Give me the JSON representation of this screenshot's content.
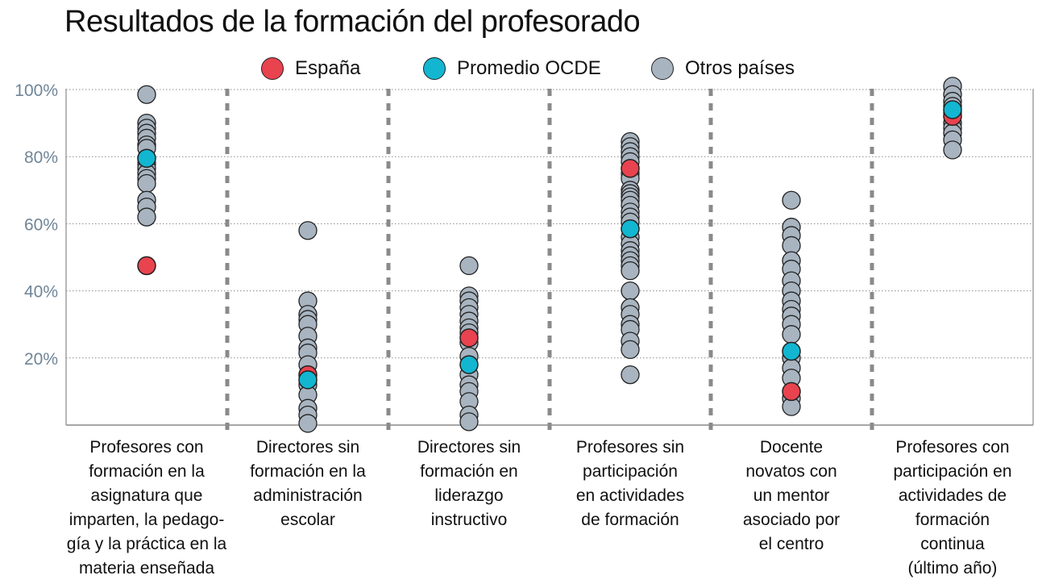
{
  "chart_data": {
    "type": "scatter",
    "title": "Resultados de la formación del profesorado",
    "ylim": [
      0,
      100
    ],
    "y_ticks": [
      "20%",
      "40%",
      "60%",
      "80%",
      "100%"
    ],
    "grid": "horizontal dotted",
    "legend_position": "top",
    "legend": [
      {
        "name": "España",
        "color": "#e8434f"
      },
      {
        "name": "Promedio OCDE",
        "color": "#12b6d1"
      },
      {
        "name": "Otros países",
        "color": "#a8b4c0"
      }
    ],
    "categories": [
      {
        "label": "Profesores con formación en la asignatura que imparten, la pedago-gía y la práctica en la materia enseñada",
        "lines": [
          "Profesores con",
          "formación en la",
          "asignatura que",
          "imparten, la pedago-",
          "gía y la práctica en la",
          "materia enseñada"
        ],
        "espana": 47.5,
        "ocde": 79.5,
        "otros": [
          98.5,
          90,
          88.5,
          87,
          85.5,
          83.5,
          82.5,
          79.5,
          78,
          76.5,
          75,
          73.5,
          72,
          67,
          65,
          62
        ]
      },
      {
        "label": "Directores sin formación en la administración escolar",
        "lines": [
          "Directores sin",
          "formación en la",
          "administración",
          "escolar"
        ],
        "espana": 15,
        "ocde": 13.5,
        "otros": [
          58,
          37,
          33,
          31.5,
          30,
          26.5,
          23,
          21.5,
          18,
          12,
          9,
          5,
          3,
          0.5
        ]
      },
      {
        "label": "Directores sin formación en liderazgo instructivo",
        "lines": [
          "Directores sin",
          "formación en",
          "liderazgo",
          "instructivo"
        ],
        "espana": 26,
        "ocde": 18,
        "otros": [
          47.5,
          38.5,
          37,
          35,
          33,
          31,
          29,
          27.5,
          24.5,
          20.5,
          15,
          12,
          10,
          7,
          3,
          1
        ]
      },
      {
        "label": "Profesores sin participación en actividades de formación",
        "lines": [
          "Profesores sin",
          "participación",
          "en actividades",
          "de formación"
        ],
        "espana": 76.5,
        "ocde": 58.5,
        "otros": [
          84.5,
          83,
          81.5,
          80,
          78.5,
          75,
          73.5,
          70,
          69,
          68,
          67,
          65.5,
          63.5,
          62,
          60.5,
          56,
          54,
          52,
          50.5,
          49,
          47.5,
          46,
          40,
          35,
          33,
          30,
          28.5,
          25,
          22.5,
          15
        ]
      },
      {
        "label": "Docente novatos con un mentor asociado por el centro",
        "lines": [
          "Docente",
          "novatos con",
          "un mentor",
          "asociado por",
          "el centro"
        ],
        "espana": 10,
        "ocde": 22,
        "otros": [
          67,
          59,
          56.5,
          53.5,
          49,
          46.5,
          43,
          40,
          37,
          34.5,
          32.5,
          30,
          27,
          20,
          17,
          14,
          8,
          5.5
        ]
      },
      {
        "label": "Profesores con participación en actividades de formación continua (último año)",
        "lines": [
          "Profesores con",
          "participación en",
          "actividades de",
          "formación",
          "continua",
          "(último año)"
        ],
        "espana": 92,
        "ocde": 94,
        "otros": [
          101,
          98.5,
          96.5,
          95,
          93,
          90,
          88.5,
          87,
          85,
          82
        ]
      }
    ]
  }
}
